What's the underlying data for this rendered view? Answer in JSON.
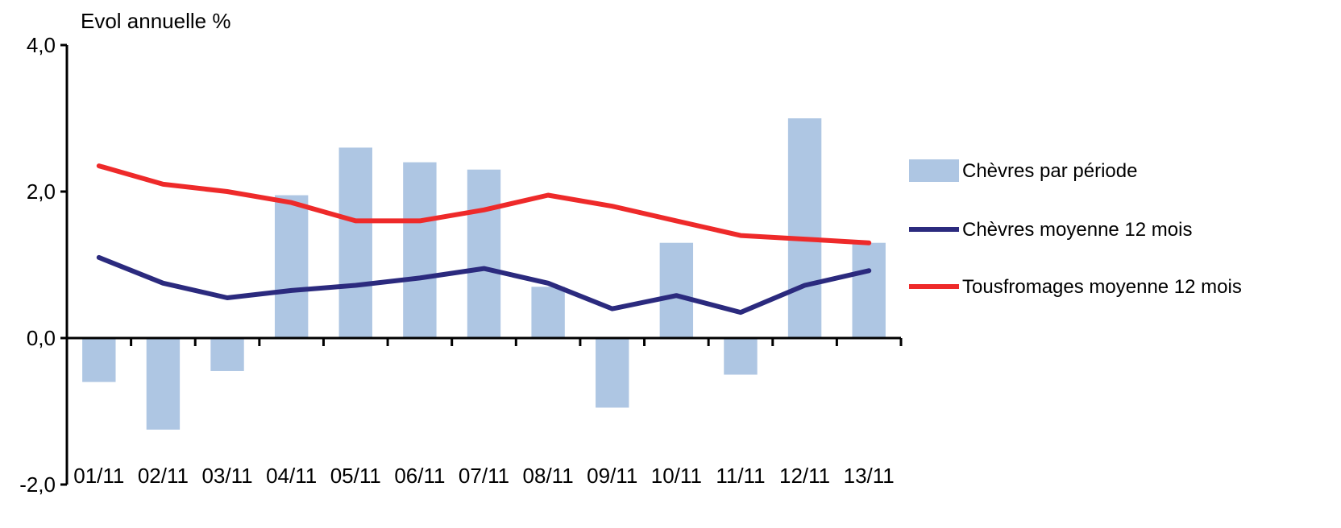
{
  "chart_data": {
    "type": "bar",
    "title": "",
    "ylabel": "Evol annuelle  %",
    "xlabel": "",
    "ylim": [
      -2.0,
      4.0
    ],
    "yticks": [
      -2.0,
      0.0,
      2.0,
      4.0
    ],
    "ytick_labels": [
      "-2,0",
      "0,0",
      "2,0",
      "4,0"
    ],
    "categories": [
      "01/11",
      "02/11",
      "03/11",
      "04/11",
      "05/11",
      "06/11",
      "07/11",
      "08/11",
      "09/11",
      "10/11",
      "11/11",
      "12/11",
      "13/11"
    ],
    "grid": false,
    "legend_position": "right",
    "series": [
      {
        "name": "Chèvres par période",
        "type": "bar",
        "color": "#aec6e3",
        "values": [
          -0.6,
          -1.25,
          -0.45,
          1.95,
          2.6,
          2.4,
          2.3,
          0.7,
          -0.95,
          1.3,
          -0.5,
          3.0,
          1.3
        ]
      },
      {
        "name": "Chèvres moyenne 12 mois",
        "type": "line",
        "color": "#2b2a7e",
        "values": [
          1.1,
          0.75,
          0.55,
          0.65,
          0.72,
          0.82,
          0.95,
          0.75,
          0.4,
          0.58,
          0.35,
          0.72,
          0.92
        ]
      },
      {
        "name": "Tousfromages moyenne 12 mois",
        "type": "line",
        "color": "#ee2a2a",
        "values": [
          2.35,
          2.1,
          2.0,
          1.85,
          1.6,
          1.6,
          1.75,
          1.95,
          1.8,
          1.6,
          1.4,
          1.35,
          1.3
        ]
      }
    ]
  }
}
